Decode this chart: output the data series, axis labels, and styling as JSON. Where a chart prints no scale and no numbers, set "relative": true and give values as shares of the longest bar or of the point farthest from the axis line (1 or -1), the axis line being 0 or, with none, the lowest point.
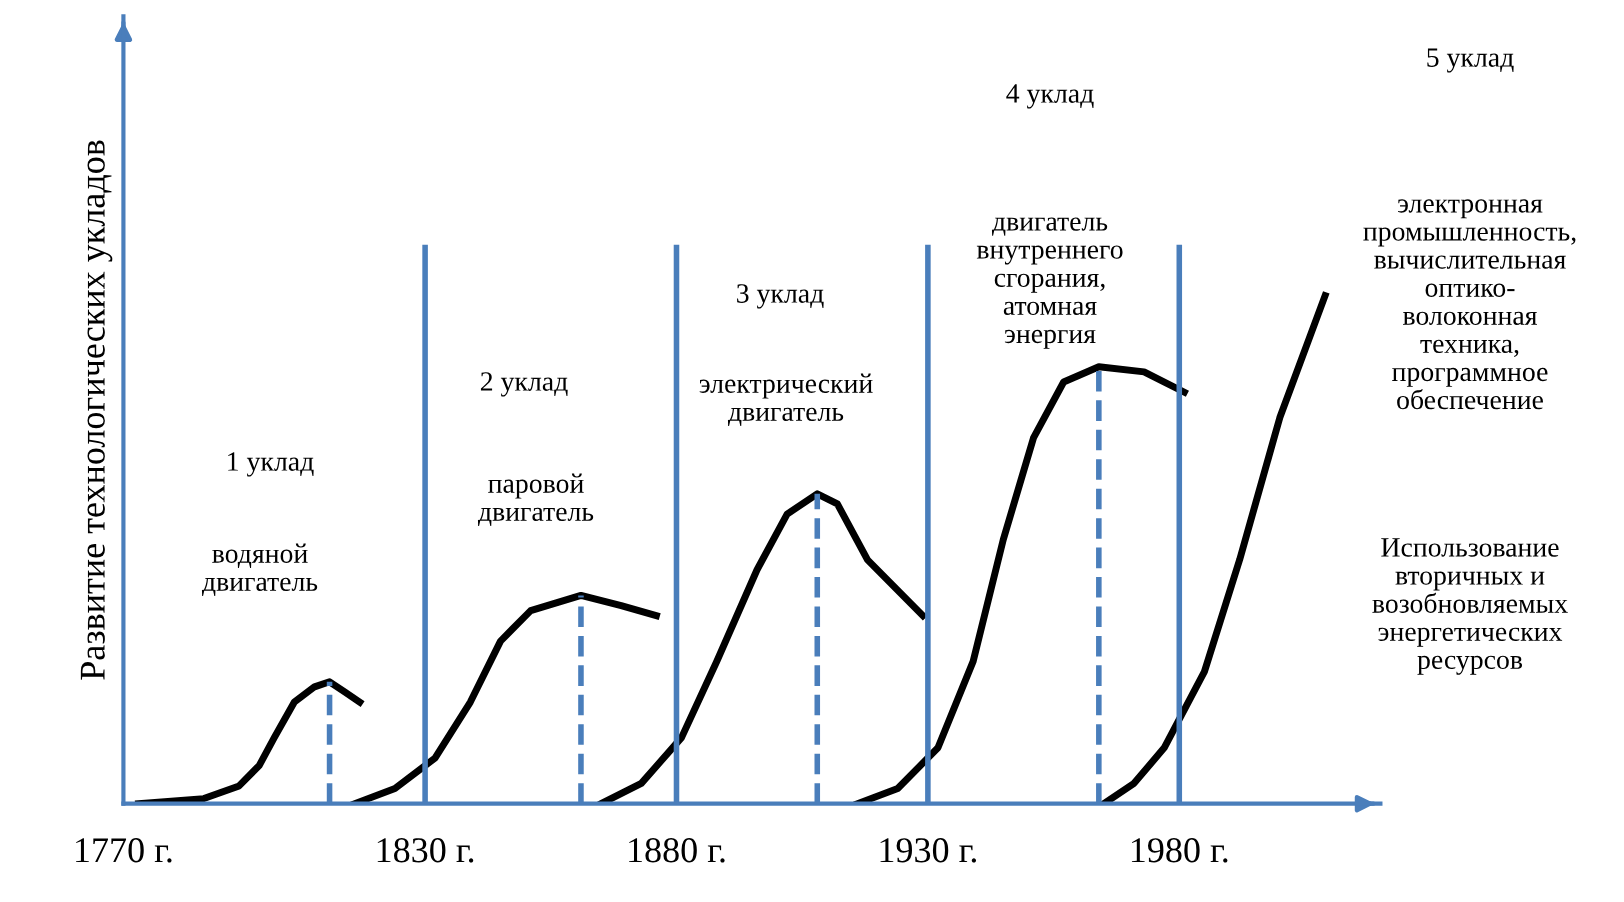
{
  "chart_data": {
    "type": "line",
    "relative": true,
    "ylabel": "Развитие технологических укладов",
    "xlim": [
      1770,
      2020
    ],
    "xticks": [
      {
        "value": 1770,
        "label": "1770 г."
      },
      {
        "value": 1830,
        "label": "1830 г."
      },
      {
        "value": 1880,
        "label": "1880 г."
      },
      {
        "value": 1930,
        "label": "1930 г."
      },
      {
        "value": 1980,
        "label": "1980 г."
      }
    ],
    "series": [
      {
        "color": "#000000",
        "x": [
          1773,
          1786,
          1793,
          1797,
          1800,
          1804,
          1808,
          1811,
          1814,
          1817
        ],
        "values": [
          0,
          0.01,
          0.035,
          0.075,
          0.13,
          0.2,
          0.23,
          0.24,
          0.22,
          0.2
        ]
      },
      {
        "color": "#000000",
        "x": [
          1816,
          1824,
          1832,
          1839,
          1845,
          1851,
          1861,
          1869,
          1876
        ],
        "values": [
          0,
          0.03,
          0.09,
          0.2,
          0.32,
          0.38,
          0.41,
          0.39,
          0.37
        ]
      },
      {
        "color": "#000000",
        "x": [
          1865,
          1873,
          1881,
          1888,
          1896,
          1902,
          1908,
          1912,
          1918,
          1929
        ],
        "values": [
          0,
          0.04,
          0.13,
          0.28,
          0.46,
          0.57,
          0.61,
          0.59,
          0.48,
          0.37
        ]
      },
      {
        "color": "#000000",
        "x": [
          1916,
          1924,
          1932,
          1939,
          1945,
          1951,
          1957,
          1964,
          1973,
          1981
        ],
        "values": [
          0,
          0.03,
          0.11,
          0.28,
          0.52,
          0.72,
          0.83,
          0.86,
          0.85,
          0.81
        ]
      },
      {
        "color": "#000000",
        "x": [
          1965,
          1971,
          1977,
          1985,
          1992,
          2000,
          2009
        ],
        "values": [
          0,
          0.04,
          0.11,
          0.26,
          0.48,
          0.76,
          1
        ]
      }
    ],
    "ref_lines": [
      {
        "axis": "x",
        "value": 1830,
        "color": "#4a7ebb",
        "line_style": "solid"
      },
      {
        "axis": "x",
        "value": 1880,
        "color": "#4a7ebb",
        "line_style": "solid"
      },
      {
        "axis": "x",
        "value": 1930,
        "color": "#4a7ebb",
        "line_style": "solid"
      },
      {
        "axis": "x",
        "value": 1980,
        "color": "#4a7ebb",
        "line_style": "solid"
      },
      {
        "axis": "x",
        "value": 1811,
        "color": "#4a7ebb",
        "line_style": "dashed"
      },
      {
        "axis": "x",
        "value": 1861,
        "color": "#4a7ebb",
        "line_style": "dashed"
      },
      {
        "axis": "x",
        "value": 1908,
        "color": "#4a7ebb",
        "line_style": "dashed"
      },
      {
        "axis": "x",
        "value": 1964,
        "color": "#4a7ebb",
        "line_style": "dashed"
      }
    ],
    "annotations": [
      "1 уклад",
      "водяной\nдвигатель",
      "2 уклад",
      "паровой\nдвигатель",
      "3 уклад",
      "электрический\nдвигатель",
      "4 уклад",
      "двигатель\nвнутреннего\nсгорания,\nатомная\nэнергия",
      "5 уклад",
      "электронная\nпромышленность,\nвычислительная\nоптико-\nволоконная\nтехника,\nпрограммное\nобеспечение",
      "Использование\nвторичных и\nвозобновляемых\nэнергетических\nресурсов"
    ],
    "grid": false,
    "legend": false,
    "line_style": "solid",
    "marker": "none"
  }
}
